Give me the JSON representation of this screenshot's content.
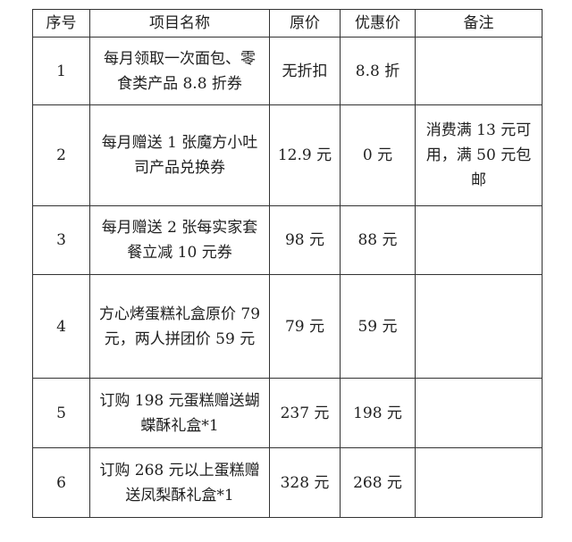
{
  "table": {
    "headers": {
      "no": "序号",
      "name": "项目名称",
      "original_price": "原价",
      "discount_price": "优惠价",
      "note": "备注"
    },
    "rows": [
      {
        "no": "1",
        "name": "每月领取一次面包、零食类产品 8.8 折券",
        "original_price": "无折扣",
        "discount_price": "8.8 折",
        "note": ""
      },
      {
        "no": "2",
        "name": "每月赠送 1 张魔方小吐司产品兑换券",
        "original_price": "12.9 元",
        "discount_price": "0 元",
        "note": "消费满 13 元可用，满 50 元包邮"
      },
      {
        "no": "3",
        "name": "每月赠送 2 张每实家套餐立减 10 元券",
        "original_price": "98 元",
        "discount_price": "88 元",
        "note": ""
      },
      {
        "no": "4",
        "name": "方心烤蛋糕礼盒原价 79 元，两人拼团价 59 元",
        "original_price": "79 元",
        "discount_price": "59 元",
        "note": ""
      },
      {
        "no": "5",
        "name": "订购 198 元蛋糕赠送蝴蝶酥礼盒*1",
        "original_price": "237 元",
        "discount_price": "198 元",
        "note": ""
      },
      {
        "no": "6",
        "name": "订购 268 元以上蛋糕赠送凤梨酥礼盒*1",
        "original_price": "328 元",
        "discount_price": "268 元",
        "note": ""
      }
    ]
  }
}
